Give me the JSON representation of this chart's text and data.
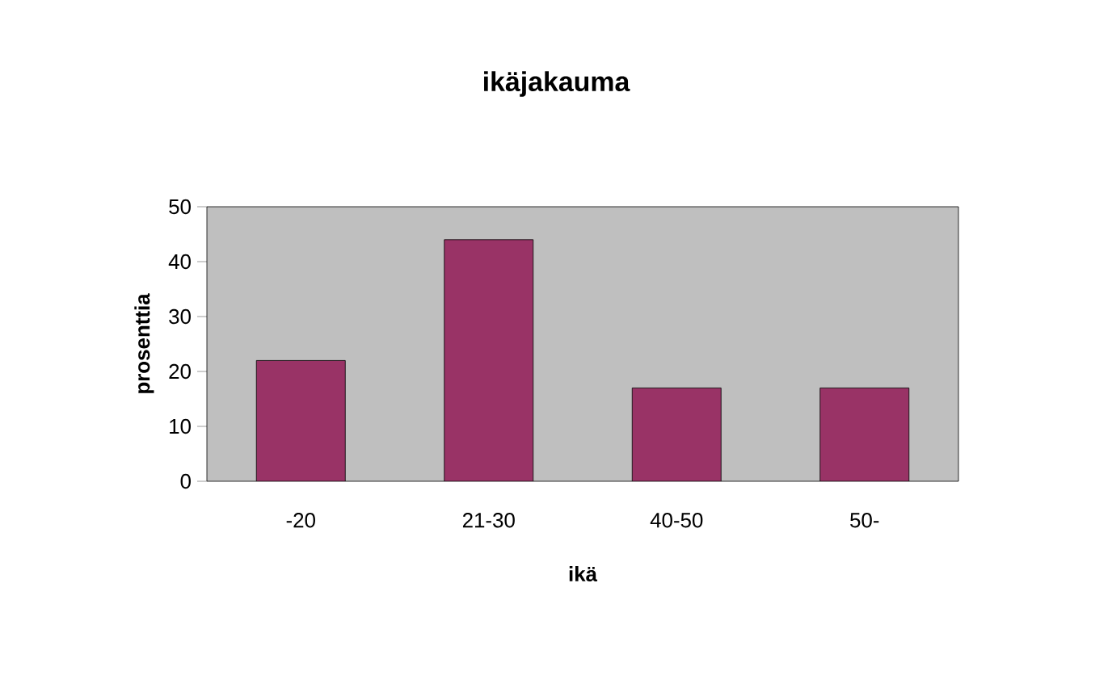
{
  "chart_data": {
    "type": "bar",
    "title": "ikäjakauma",
    "xlabel": "ikä",
    "ylabel": "prosenttia",
    "categories": [
      "-20",
      "21-30",
      "40-50",
      "50-"
    ],
    "values": [
      22,
      44,
      17,
      17
    ],
    "color": "#993366",
    "ylim": [
      0,
      50
    ],
    "yticks": [
      0,
      10,
      20,
      30,
      40,
      50
    ],
    "grid": false
  }
}
